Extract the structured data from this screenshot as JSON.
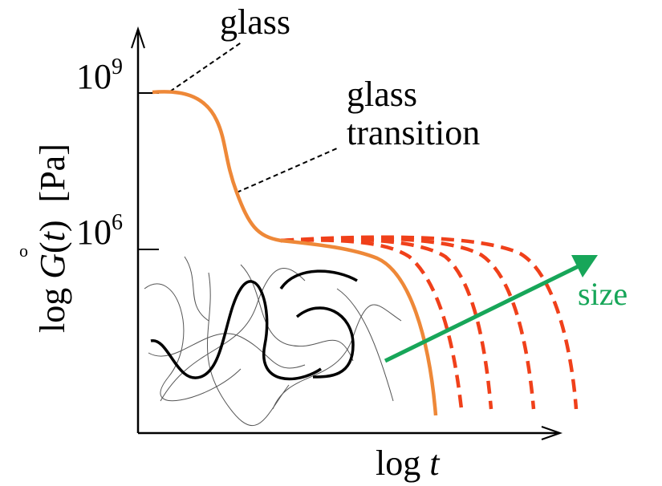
{
  "labels": {
    "glass": "glass",
    "glass_transition": [
      "glass",
      "transition"
    ],
    "size": "size",
    "marker": "o"
  },
  "y_axis": {
    "label": [
      {
        "text": "log "
      },
      {
        "text": "G",
        "italic": true
      },
      {
        "text": "("
      },
      {
        "text": "t",
        "italic": true
      },
      {
        "text": ")  [Pa]"
      }
    ],
    "ticks": [
      {
        "base": "10",
        "exponent": "9"
      },
      {
        "base": "10",
        "exponent": "6"
      }
    ]
  },
  "x_axis": {
    "label": [
      {
        "text": "log "
      },
      {
        "text": "t",
        "italic": true
      }
    ]
  }
}
